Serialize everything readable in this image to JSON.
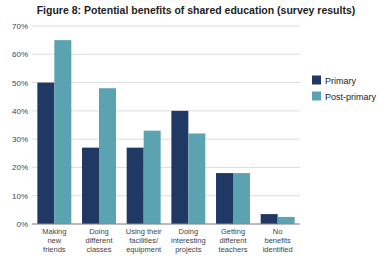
{
  "chart_data": {
    "type": "bar",
    "title": "Figure 8: Potential benefits of shared education (survey results)",
    "categories": [
      "Making\nnew\nfriends",
      "Doing\ndifferent\nclasses",
      "Using their\nfacilities/\nequipment",
      "Doing\ninteresting\nprojects",
      "Getting\ndifferent\nteachers",
      "No\nbenefits\nidentified"
    ],
    "series": [
      {
        "name": "Primary",
        "color": "#1F3864",
        "values": [
          50,
          27,
          27,
          40,
          18,
          3.5
        ]
      },
      {
        "name": "Post-primary",
        "color": "#5BA3B0",
        "values": [
          65,
          48,
          33,
          32,
          18,
          2.5
        ]
      }
    ],
    "ylim": [
      0,
      70
    ],
    "yticks": [
      {
        "value": 0,
        "label": "0%"
      },
      {
        "value": 10,
        "label": "10%"
      },
      {
        "value": 20,
        "label": "20%"
      },
      {
        "value": 30,
        "label": "30%"
      },
      {
        "value": 40,
        "label": "40%"
      },
      {
        "value": 50,
        "label": "50%"
      },
      {
        "value": 60,
        "label": "60%"
      },
      {
        "value": 70,
        "label": "70%"
      }
    ],
    "grid": true,
    "legend": "right"
  }
}
